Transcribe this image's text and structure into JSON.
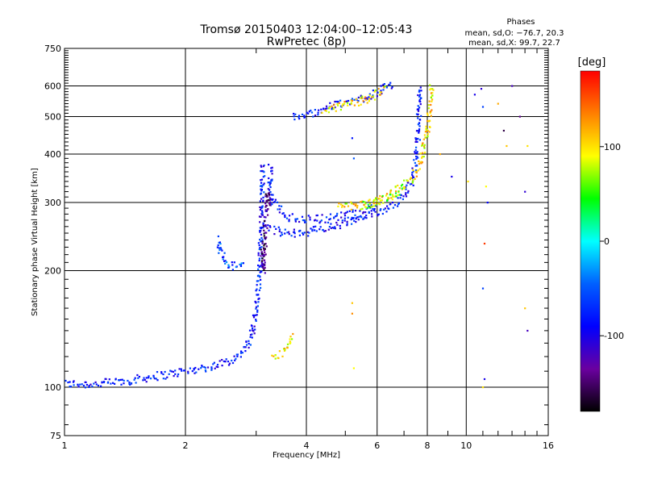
{
  "chart_data": {
    "type": "scatter",
    "title": "Tromsø 20150403 12:04:00–12:05:43",
    "subtitle": "RwPretec (8p)",
    "xlabel": "Frequency [MHz]",
    "ylabel": "Stationary phase Virtual Height [km]",
    "x_scale": "log",
    "y_scale": "log",
    "xlim": [
      1,
      16
    ],
    "ylim": [
      75,
      750
    ],
    "x_ticks": [
      1,
      2,
      4,
      6,
      8,
      10,
      16
    ],
    "y_ticks": [
      75,
      100,
      200,
      300,
      400,
      500,
      600,
      750
    ],
    "x_tick_labels": [
      "1",
      "2",
      "4",
      "6",
      "8",
      "10",
      "16"
    ],
    "y_tick_labels": [
      "75",
      "100",
      "200",
      "300",
      "400",
      "500",
      "600",
      "750"
    ],
    "grid": true,
    "info_box": {
      "title": "Phases",
      "line_o": "mean, sd,O: −76.7, 20.3",
      "line_x": "mean, sd,X:  99.7, 22.7"
    },
    "colorbar": {
      "label": "[deg]",
      "range": [
        -180,
        180
      ],
      "ticks": [
        100,
        0,
        -100
      ],
      "tick_labels": [
        "100",
        "0",
        "-100"
      ],
      "colors": [
        "#ff0000",
        "#ff7f00",
        "#ffff00",
        "#00ff00",
        "#00ffff",
        "#0060ff",
        "#0000ff",
        "#6a00a0",
        "#000000"
      ]
    },
    "series": [
      {
        "phase": -80,
        "traces": [
          [
            [
              1.0,
              102
            ],
            [
              1.1,
              102
            ],
            [
              1.2,
              102
            ],
            [
              1.3,
              103
            ],
            [
              1.45,
              104
            ],
            [
              1.6,
              106
            ],
            [
              1.8,
              108
            ],
            [
              2.0,
              110
            ],
            [
              2.2,
              112
            ],
            [
              2.4,
              114
            ],
            [
              2.6,
              118
            ],
            [
              2.75,
              122
            ],
            [
              2.85,
              128
            ],
            [
              2.92,
              135
            ],
            [
              2.97,
              150
            ],
            [
              3.02,
              170
            ],
            [
              3.06,
              200
            ],
            [
              3.08,
              240
            ],
            [
              3.1,
              290
            ],
            [
              3.12,
              380
            ]
          ],
          [
            [
              3.2,
              260
            ],
            [
              3.3,
              255
            ],
            [
              3.5,
              250
            ],
            [
              3.7,
              250
            ],
            [
              4.0,
              252
            ],
            [
              4.4,
              256
            ],
            [
              4.8,
              262
            ],
            [
              5.2,
              268
            ],
            [
              5.6,
              275
            ],
            [
              6.0,
              282
            ],
            [
              6.4,
              292
            ],
            [
              6.8,
              305
            ],
            [
              7.1,
              320
            ],
            [
              7.3,
              340
            ],
            [
              7.45,
              370
            ],
            [
              7.55,
              420
            ],
            [
              7.62,
              500
            ],
            [
              7.68,
              600
            ]
          ],
          [
            [
              3.5,
              275
            ],
            [
              4.0,
              272
            ],
            [
              4.5,
              273
            ],
            [
              5.0,
              278
            ],
            [
              5.5,
              283
            ],
            [
              6.0,
              292
            ]
          ],
          [
            [
              3.25,
              370
            ],
            [
              3.25,
              330
            ],
            [
              3.3,
              300
            ],
            [
              3.4,
              290
            ],
            [
              3.5,
              285
            ]
          ],
          [
            [
              3.7,
              500
            ],
            [
              4.0,
              505
            ],
            [
              4.3,
              520
            ],
            [
              4.7,
              535
            ],
            [
              5.2,
              548
            ],
            [
              5.7,
              565
            ],
            [
              6.2,
              590
            ],
            [
              6.6,
              600
            ]
          ]
        ]
      },
      {
        "phase": 100,
        "traces": [
          [
            [
              4.8,
              300
            ],
            [
              5.2,
              293
            ],
            [
              5.6,
              296
            ],
            [
              6.0,
              302
            ],
            [
              6.4,
              313
            ],
            [
              6.8,
              325
            ],
            [
              7.2,
              340
            ],
            [
              7.5,
              360
            ],
            [
              7.75,
              390
            ],
            [
              7.95,
              440
            ],
            [
              8.1,
              520
            ],
            [
              8.2,
              600
            ]
          ],
          [
            [
              3.3,
              118
            ],
            [
              3.45,
              122
            ],
            [
              3.6,
              128
            ],
            [
              3.72,
              135
            ]
          ],
          [
            [
              4.4,
              515
            ],
            [
              4.8,
              530
            ],
            [
              5.3,
              545
            ],
            [
              5.8,
              560
            ],
            [
              6.3,
              590
            ]
          ]
        ]
      },
      {
        "phase": -140,
        "traces": [
          [
            [
              3.1,
              230
            ],
            [
              3.12,
              200
            ],
            [
              3.2,
              320
            ],
            [
              3.25,
              290
            ]
          ]
        ]
      },
      {
        "phase": -60,
        "traces": [
          [
            [
              2.4,
              240
            ],
            [
              2.45,
              225
            ],
            [
              2.5,
              212
            ],
            [
              2.6,
              205
            ],
            [
              2.7,
              208
            ],
            [
              2.8,
              212
            ]
          ]
        ]
      },
      {
        "phase": 60,
        "traces": [
          [
            [
              5.5,
              294
            ],
            [
              6.0,
              300
            ],
            [
              6.5,
              310
            ],
            [
              7.0,
              330
            ]
          ]
        ]
      }
    ],
    "isolated_points": [
      {
        "x": 5.2,
        "y": 165,
        "phase": 110
      },
      {
        "x": 5.2,
        "y": 155,
        "phase": 130
      },
      {
        "x": 5.25,
        "y": 112,
        "phase": 90
      },
      {
        "x": 5.2,
        "y": 440,
        "phase": -80
      },
      {
        "x": 5.25,
        "y": 390,
        "phase": -50
      },
      {
        "x": 8.6,
        "y": 400,
        "phase": 120
      },
      {
        "x": 9.2,
        "y": 350,
        "phase": -100
      },
      {
        "x": 10.1,
        "y": 340,
        "phase": 100
      },
      {
        "x": 10.5,
        "y": 570,
        "phase": -100
      },
      {
        "x": 10.9,
        "y": 590,
        "phase": -110
      },
      {
        "x": 11.0,
        "y": 530,
        "phase": -60
      },
      {
        "x": 11.2,
        "y": 330,
        "phase": 90
      },
      {
        "x": 11.3,
        "y": 300,
        "phase": -90
      },
      {
        "x": 11.1,
        "y": 235,
        "phase": 160
      },
      {
        "x": 11.0,
        "y": 180,
        "phase": -60
      },
      {
        "x": 11.1,
        "y": 105,
        "phase": -100
      },
      {
        "x": 11.0,
        "y": 100,
        "phase": 100
      },
      {
        "x": 12.0,
        "y": 540,
        "phase": 120
      },
      {
        "x": 12.4,
        "y": 460,
        "phase": -160
      },
      {
        "x": 12.6,
        "y": 420,
        "phase": 110
      },
      {
        "x": 13.0,
        "y": 600,
        "phase": -120
      },
      {
        "x": 13.6,
        "y": 500,
        "phase": -140
      },
      {
        "x": 14.2,
        "y": 420,
        "phase": 100
      },
      {
        "x": 14.0,
        "y": 320,
        "phase": -110
      },
      {
        "x": 14.0,
        "y": 160,
        "phase": 110
      },
      {
        "x": 14.2,
        "y": 140,
        "phase": -120
      }
    ]
  }
}
